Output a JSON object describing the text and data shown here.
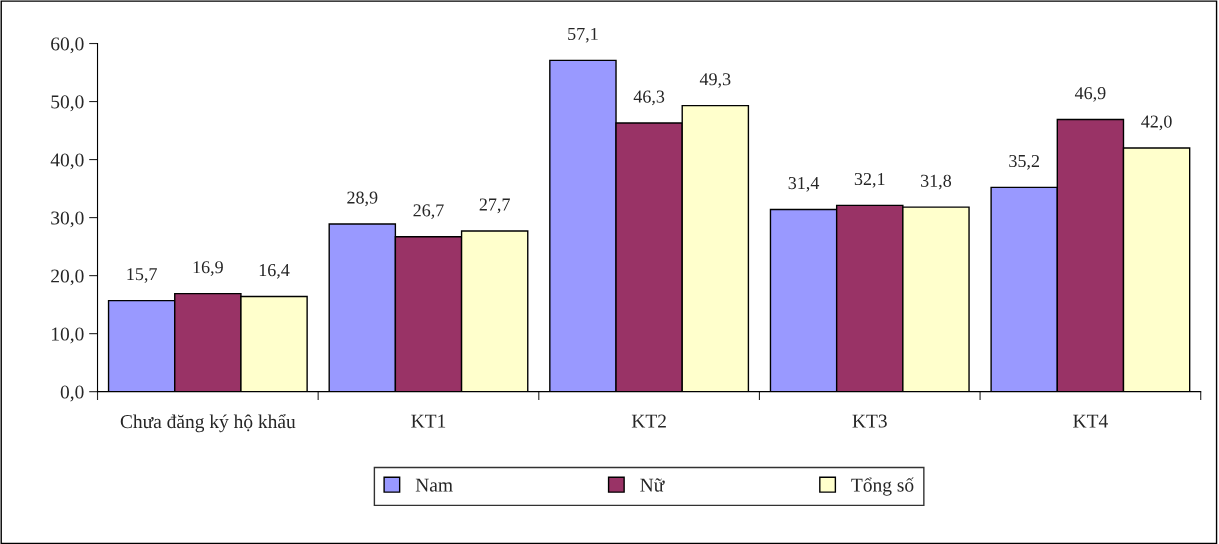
{
  "chart_data": {
    "type": "bar",
    "categories": [
      "Chưa đăng ký hộ khẩu",
      "KT1",
      "KT2",
      "KT3",
      "KT4"
    ],
    "series": [
      {
        "name": "Nam",
        "color": "#9999ff",
        "values": [
          15.7,
          28.9,
          57.1,
          31.4,
          35.2
        ],
        "value_labels": [
          "15,7",
          "28,9",
          "57,1",
          "31,4",
          "35,2"
        ]
      },
      {
        "name": "Nữ",
        "color": "#993366",
        "values": [
          16.9,
          26.7,
          46.3,
          32.1,
          46.9
        ],
        "value_labels": [
          "16,9",
          "26,7",
          "46,3",
          "32,1",
          "46,9"
        ]
      },
      {
        "name": "Tổng số",
        "color": "#ffffcc",
        "values": [
          16.4,
          27.7,
          49.3,
          31.8,
          42.0
        ],
        "value_labels": [
          "16,4",
          "27,7",
          "49,3",
          "31,8",
          "42,0"
        ]
      }
    ],
    "ylim": [
      0,
      60
    ],
    "yticks": [
      {
        "value": 0,
        "label": "0,0"
      },
      {
        "value": 10,
        "label": "10,0"
      },
      {
        "value": 20,
        "label": "20,0"
      },
      {
        "value": 30,
        "label": "30,0"
      },
      {
        "value": 40,
        "label": "40,0"
      },
      {
        "value": 50,
        "label": "50,0"
      },
      {
        "value": 60,
        "label": "60,0"
      }
    ],
    "grid": false,
    "legend": "bottom"
  }
}
